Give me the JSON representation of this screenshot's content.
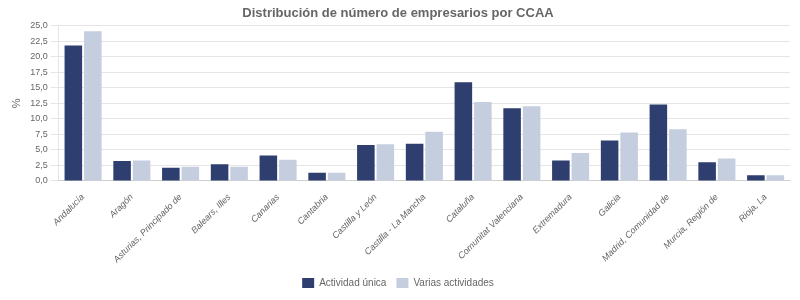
{
  "chart_data": {
    "type": "bar",
    "title": "Distribución de número de empresarios por CCAA",
    "ylabel": "%",
    "categories": [
      "Andalucía",
      "Aragón",
      "Asturias, Principado de",
      "Balears, Illes",
      "Canarias",
      "Cantabria",
      "Castilla y León",
      "Castilla - La Mancha",
      "Cataluña",
      "Comunitat Valenciana",
      "Extremadura",
      "Galicia",
      "Madrid, Comunidad de",
      "Murcia, Región de",
      "Rioja, La"
    ],
    "series": [
      {
        "name": "Actividad única",
        "color": "#2E3F6F",
        "values": [
          21.8,
          3.2,
          2.1,
          2.7,
          4.1,
          1.3,
          5.8,
          6.0,
          15.9,
          11.7,
          3.3,
          6.5,
          12.3,
          3.0,
          0.9
        ]
      },
      {
        "name": "Varias actividades",
        "color": "#C5CEDF",
        "values": [
          24.1,
          3.3,
          2.3,
          2.3,
          3.4,
          1.3,
          5.9,
          7.9,
          12.7,
          12.0,
          4.5,
          7.8,
          8.3,
          3.6,
          0.9
        ]
      }
    ],
    "ylim": [
      0,
      25
    ],
    "yticks": [
      {
        "value": 0.0,
        "label": "0,0"
      },
      {
        "value": 2.5,
        "label": "2,5"
      },
      {
        "value": 5.0,
        "label": "5,0"
      },
      {
        "value": 7.5,
        "label": "7,5"
      },
      {
        "value": 10.0,
        "label": "10,0"
      },
      {
        "value": 12.5,
        "label": "12,5"
      },
      {
        "value": 15.0,
        "label": "15,0"
      },
      {
        "value": 17.5,
        "label": "17,5"
      },
      {
        "value": 20.0,
        "label": "20,0"
      },
      {
        "value": 22.5,
        "label": "22,5"
      },
      {
        "value": 25.0,
        "label": "25,0"
      }
    ],
    "grid": true,
    "legend": "bottom"
  }
}
